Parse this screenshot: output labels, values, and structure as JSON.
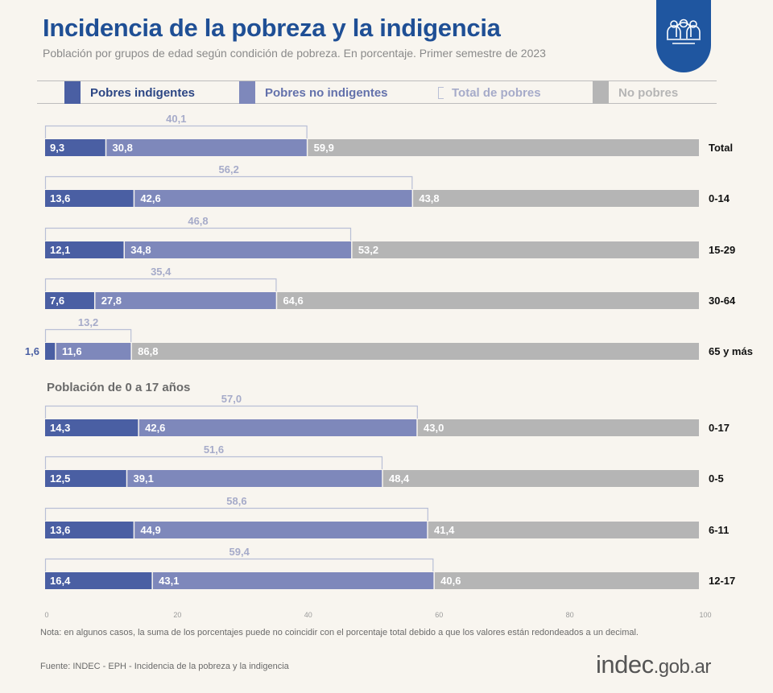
{
  "header": {
    "title": "Incidencia de la pobreza y la indigencia",
    "subtitle": "Población por grupos de edad según condición de pobreza. En porcentaje. Primer semestre de 2023",
    "badge_icon": "people-group-icon"
  },
  "legend": [
    {
      "label": "Pobres indigentes",
      "color": "#4a5fa3",
      "text_color": "#2c4684"
    },
    {
      "label": "Pobres no indigentes",
      "color": "#7e88bb",
      "text_color": "#6371ab"
    },
    {
      "label": "Total de pobres",
      "color": "#b9bfd6",
      "text_color": "#a6abc9",
      "marker": "bracket-icon"
    },
    {
      "label": "No pobres",
      "color": "#b5b5b5",
      "text_color": "#b5b5b5"
    }
  ],
  "section_title": "Población de 0 a 17 años",
  "colors": {
    "indigentes": "#4a5fa3",
    "no_indigentes": "#7e88bb",
    "no_pobres": "#b5b5b5",
    "total_bracket": "#b9bfd6",
    "total_label": "#a6abc9",
    "title": "#1f4f95"
  },
  "chart_data": {
    "type": "bar",
    "orientation": "horizontal-stacked",
    "xlim": [
      0,
      100
    ],
    "xticks": [
      "0",
      "20",
      "40",
      "60",
      "80",
      "100"
    ],
    "legend_position": "top",
    "series_names": [
      "Pobres indigentes",
      "Pobres no indigentes",
      "Total de pobres",
      "No pobres"
    ],
    "categories": [
      "Total",
      "0-14",
      "15-29",
      "30-64",
      "65 y más",
      "0-17",
      "0-5",
      "6-11",
      "12-17"
    ],
    "rows": [
      {
        "category": "Total",
        "indigentes": 9.3,
        "indigentes_label": "9,3",
        "no_indigentes": 30.8,
        "no_indigentes_label": "30,8",
        "total_pobres": 40.1,
        "total_pobres_label": "40,1",
        "no_pobres": 59.9,
        "no_pobres_label": "59,9"
      },
      {
        "category": "0-14",
        "indigentes": 13.6,
        "indigentes_label": "13,6",
        "no_indigentes": 42.6,
        "no_indigentes_label": "42,6",
        "total_pobres": 56.2,
        "total_pobres_label": "56,2",
        "no_pobres": 43.8,
        "no_pobres_label": "43,8"
      },
      {
        "category": "15-29",
        "indigentes": 12.1,
        "indigentes_label": "12,1",
        "no_indigentes": 34.8,
        "no_indigentes_label": "34,8",
        "total_pobres": 46.8,
        "total_pobres_label": "46,8",
        "no_pobres": 53.2,
        "no_pobres_label": "53,2"
      },
      {
        "category": "30-64",
        "indigentes": 7.6,
        "indigentes_label": "7,6",
        "no_indigentes": 27.8,
        "no_indigentes_label": "27,8",
        "total_pobres": 35.4,
        "total_pobres_label": "35,4",
        "no_pobres": 64.6,
        "no_pobres_label": "64,6"
      },
      {
        "category": "65 y más",
        "indigentes": 1.6,
        "indigentes_label": "1,6",
        "no_indigentes": 11.6,
        "no_indigentes_label": "11,6",
        "total_pobres": 13.2,
        "total_pobres_label": "13,2",
        "no_pobres": 86.8,
        "no_pobres_label": "86,8"
      },
      {
        "category": "0-17",
        "indigentes": 14.3,
        "indigentes_label": "14,3",
        "no_indigentes": 42.6,
        "no_indigentes_label": "42,6",
        "total_pobres": 57.0,
        "total_pobres_label": "57,0",
        "no_pobres": 43.0,
        "no_pobres_label": "43,0"
      },
      {
        "category": "0-5",
        "indigentes": 12.5,
        "indigentes_label": "12,5",
        "no_indigentes": 39.1,
        "no_indigentes_label": "39,1",
        "total_pobres": 51.6,
        "total_pobres_label": "51,6",
        "no_pobres": 48.4,
        "no_pobres_label": "48,4"
      },
      {
        "category": "6-11",
        "indigentes": 13.6,
        "indigentes_label": "13,6",
        "no_indigentes": 44.9,
        "no_indigentes_label": "44,9",
        "total_pobres": 58.6,
        "total_pobres_label": "58,6",
        "no_pobres": 41.4,
        "no_pobres_label": "41,4"
      },
      {
        "category": "12-17",
        "indigentes": 16.4,
        "indigentes_label": "16,4",
        "no_indigentes": 43.1,
        "no_indigentes_label": "43,1",
        "total_pobres": 59.4,
        "total_pobres_label": "59,4",
        "no_pobres": 40.6,
        "no_pobres_label": "40,6"
      }
    ]
  },
  "footer": {
    "note": "Nota: en algunos casos, la suma de los porcentajes puede no coincidir con el porcentaje total debido a que los valores están redondeados a un decimal.",
    "source": "Fuente: INDEC - EPH - Incidencia de la pobreza y la indigencia",
    "logo_main": "indec",
    "logo_domain": ".gob.ar"
  }
}
